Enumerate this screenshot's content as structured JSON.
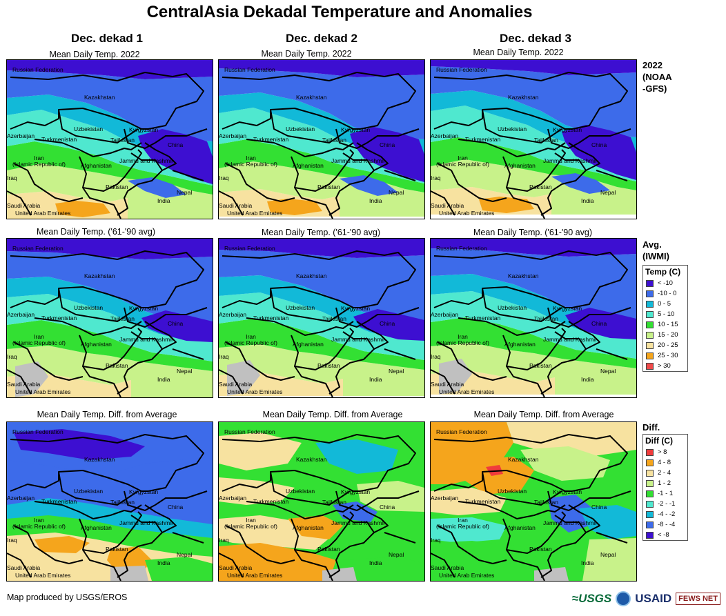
{
  "title": "CentralAsia Dekadal Temperature and Anomalies",
  "columns": [
    {
      "label": "Dec. dekad 1"
    },
    {
      "label": "Dec. dekad 2"
    },
    {
      "label": "Dec. dekad 3"
    }
  ],
  "row_subtitles": [
    "Mean Daily Temp. 2022",
    "Mean Daily Temp. ('61-'90 avg)",
    "Mean Daily Temp. Diff. from Average"
  ],
  "row_labels": [
    "2022\n(NOAA\n-GFS)",
    "Avg.\n(IWMI)",
    "Diff."
  ],
  "place_labels": {
    "russia": "Russian Federation",
    "kazakhstan": "Kazakhstan",
    "uzbekistan": "Uzbekistan",
    "kyrgyzstan": "Kyrgyzstan",
    "azerbaijan": "Azerbaijan",
    "turkmenistan": "Turkmenistan",
    "tajikistan": "Tajikistan",
    "china": "China",
    "iran": "Iran\n(Islamic Republic of)",
    "afghanistan": "Afghanistan",
    "jammu": "Jammu and Kashmir",
    "iraq": "Iraq",
    "pakistan": "Pakistan",
    "nepal": "Nepal",
    "india": "India",
    "saudi": "Saudi Arabia",
    "uae": "United Arab Emirates"
  },
  "legend_temp": {
    "title": "Temp (C)",
    "items": [
      {
        "label": "< -10",
        "color": "#3d0fd1"
      },
      {
        "label": "-10 - 0",
        "color": "#3d6bea"
      },
      {
        "label": "0 - 5",
        "color": "#12b9d8"
      },
      {
        "label": "5 - 10",
        "color": "#4fe8cf"
      },
      {
        "label": "10 - 15",
        "color": "#33e033"
      },
      {
        "label": "15 - 20",
        "color": "#c8f28a"
      },
      {
        "label": "20 - 25",
        "color": "#f7e2a0"
      },
      {
        "label": "25 - 30",
        "color": "#f5a51c"
      },
      {
        "label": "> 30",
        "color": "#f04a4a"
      }
    ]
  },
  "legend_diff": {
    "title": "Diff (C)",
    "items": [
      {
        "label": "> 8",
        "color": "#f03c3c"
      },
      {
        "label": "4 - 8",
        "color": "#f5a51c"
      },
      {
        "label": "2 - 4",
        "color": "#f7e2a0"
      },
      {
        "label": "1 - 2",
        "color": "#c8f28a"
      },
      {
        "label": "-1 - 1",
        "color": "#33e033"
      },
      {
        "label": "-2 - -1",
        "color": "#4fe8cf"
      },
      {
        "label": "-4 - -2",
        "color": "#12b9d8"
      },
      {
        "label": "-8 - -4",
        "color": "#3d6bea"
      },
      {
        "label": "< -8",
        "color": "#3d0fd1"
      }
    ]
  },
  "footer": "Map produced by USGS/EROS",
  "logos": {
    "usgs": "≈USGS",
    "usaid": "USAID",
    "fews": "FEWS NET"
  }
}
